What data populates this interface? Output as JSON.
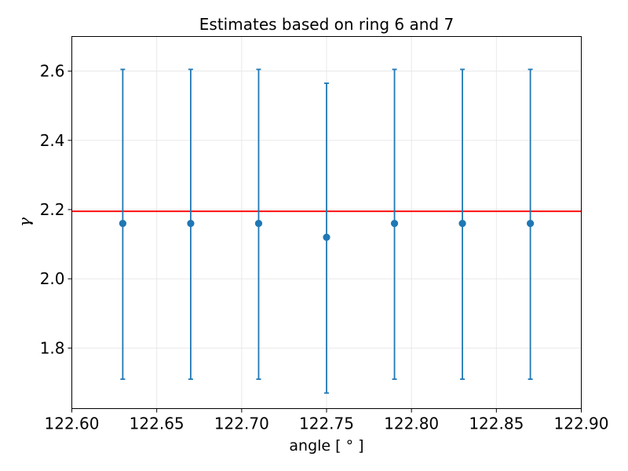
{
  "chart_data": {
    "type": "scatter",
    "title": "Estimates based on ring 6 and 7",
    "xlabel": "angle [$^\\circ$]",
    "xlabel_display": "angle [ ° ]",
    "ylabel": "γ",
    "xlim": [
      122.6,
      122.9
    ],
    "ylim": [
      1.625,
      2.7
    ],
    "xticks": [
      122.6,
      122.65,
      122.7,
      122.75,
      122.8,
      122.85,
      122.9
    ],
    "xtick_labels": [
      "122.60",
      "122.65",
      "122.70",
      "122.75",
      "122.80",
      "122.85",
      "122.90"
    ],
    "yticks": [
      1.8,
      2.0,
      2.2,
      2.4,
      2.6
    ],
    "ytick_labels": [
      "1.8",
      "2.0",
      "2.2",
      "2.4",
      "2.6"
    ],
    "grid": true,
    "series": [
      {
        "x": [
          122.63,
          122.67,
          122.71,
          122.75,
          122.79,
          122.83,
          122.87
        ],
        "y": [
          2.16,
          2.16,
          2.16,
          2.12,
          2.16,
          2.16,
          2.16
        ],
        "yerr_low": [
          1.71,
          1.71,
          1.71,
          1.67,
          1.71,
          1.71,
          1.71
        ],
        "yerr_high": [
          2.605,
          2.605,
          2.605,
          2.565,
          2.605,
          2.605,
          2.605
        ],
        "color": "#1f77b4"
      }
    ],
    "reference_line": {
      "y": 2.195,
      "color": "#ff0000"
    }
  }
}
